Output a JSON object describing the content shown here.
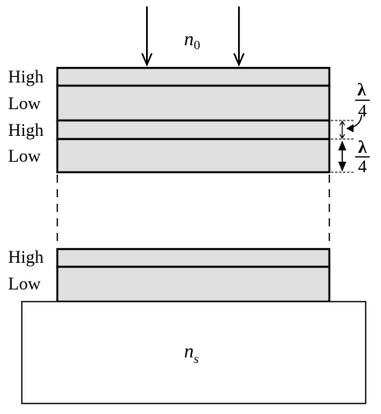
{
  "incident_medium": {
    "symbol": "n",
    "subscript": "0"
  },
  "substrate": {
    "symbol": "n",
    "subscript": "s"
  },
  "layers_top": [
    {
      "label": "High",
      "type": "high"
    },
    {
      "label": "Low",
      "type": "low"
    },
    {
      "label": "High",
      "type": "high"
    },
    {
      "label": "Low",
      "type": "low"
    }
  ],
  "layers_bottom": [
    {
      "label": "High",
      "type": "high"
    },
    {
      "label": "Low",
      "type": "low"
    }
  ],
  "thickness_label_1": {
    "numerator": "λ",
    "denominator": "4"
  },
  "thickness_label_2": {
    "numerator": "λ",
    "denominator": "4"
  },
  "colors": {
    "film": "#e0e0e0",
    "stroke": "#000000",
    "background": "#ffffff"
  }
}
